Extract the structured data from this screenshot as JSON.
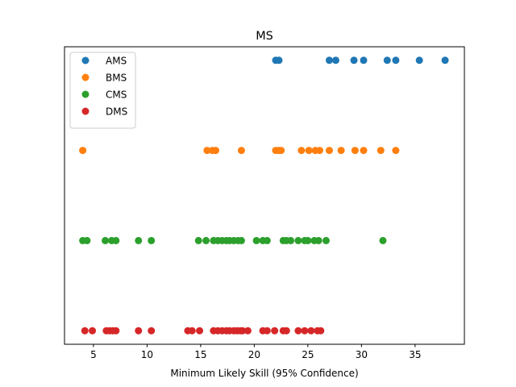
{
  "chart_data": {
    "type": "scatter",
    "title": "MS",
    "xlabel": "Minimum Likely Skill (95% Confidence)",
    "ylabel": "",
    "xlim": [
      2.3,
      39.6
    ],
    "xticks": [
      5,
      10,
      15,
      20,
      25,
      30,
      35
    ],
    "ylim": [
      -0.15,
      3.15
    ],
    "yticks_visible": false,
    "grid": false,
    "legend": "top-left",
    "series": [
      {
        "name": "AMS",
        "color": "#1f77b4",
        "y": 3,
        "x": [
          22.0,
          22.3,
          27.0,
          27.6,
          29.3,
          30.2,
          32.4,
          33.2,
          35.4,
          37.8
        ]
      },
      {
        "name": "BMS",
        "color": "#ff7f0e",
        "y": 2,
        "x": [
          4.0,
          15.6,
          16.1,
          16.4,
          18.8,
          22.0,
          22.3,
          22.5,
          24.4,
          25.1,
          25.7,
          26.1,
          27.0,
          28.1,
          29.4,
          30.2,
          31.8,
          33.2
        ]
      },
      {
        "name": "CMS",
        "color": "#2ca02c",
        "y": 1,
        "x": [
          4.0,
          4.4,
          6.1,
          6.7,
          7.1,
          9.2,
          10.4,
          14.8,
          15.5,
          16.2,
          16.6,
          17.0,
          17.4,
          17.7,
          18.1,
          18.5,
          18.8,
          20.2,
          20.8,
          21.2,
          22.7,
          23.0,
          23.4,
          24.1,
          24.7,
          25.0,
          25.6,
          26.0,
          26.7,
          32.0
        ]
      },
      {
        "name": "DMS",
        "color": "#d62728",
        "y": 0,
        "x": [
          4.2,
          4.9,
          6.2,
          6.5,
          6.8,
          7.1,
          9.2,
          10.4,
          13.8,
          14.2,
          14.9,
          16.2,
          16.6,
          17.0,
          17.4,
          17.7,
          18.1,
          18.4,
          18.7,
          18.9,
          19.4,
          20.8,
          21.2,
          21.9,
          22.7,
          23.0,
          24.1,
          24.7,
          25.3,
          25.9,
          26.2
        ]
      }
    ]
  }
}
